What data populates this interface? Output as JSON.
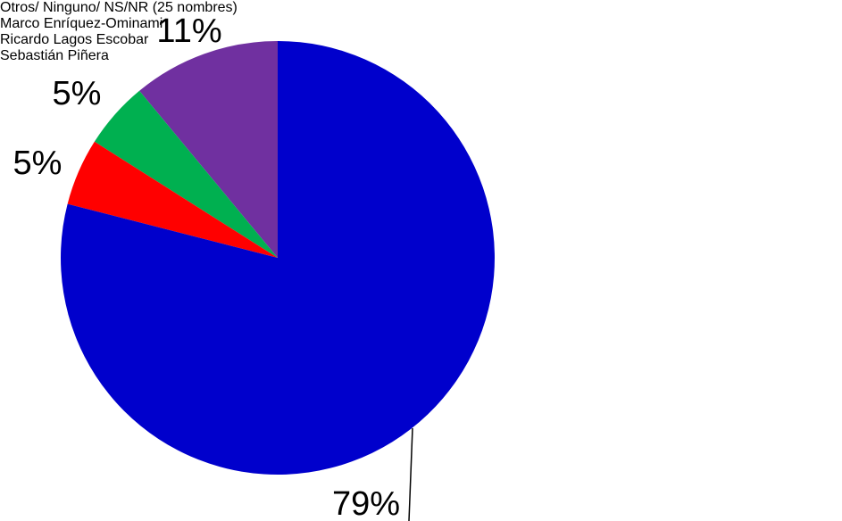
{
  "chart_data": {
    "type": "pie",
    "categories": [
      "Otros/ Ninguno/ NS/NR (25 nombres)",
      "Marco Enríquez-Ominami",
      "Ricardo Lagos Escobar",
      "Sebastián Piñera"
    ],
    "values": [
      79,
      5,
      5,
      11
    ],
    "value_labels": [
      "79%",
      "5%",
      "5%",
      "11%"
    ],
    "colors": [
      "#0000cc",
      "#ff0000",
      "#00b050",
      "#7030a0"
    ],
    "legend": "right"
  }
}
